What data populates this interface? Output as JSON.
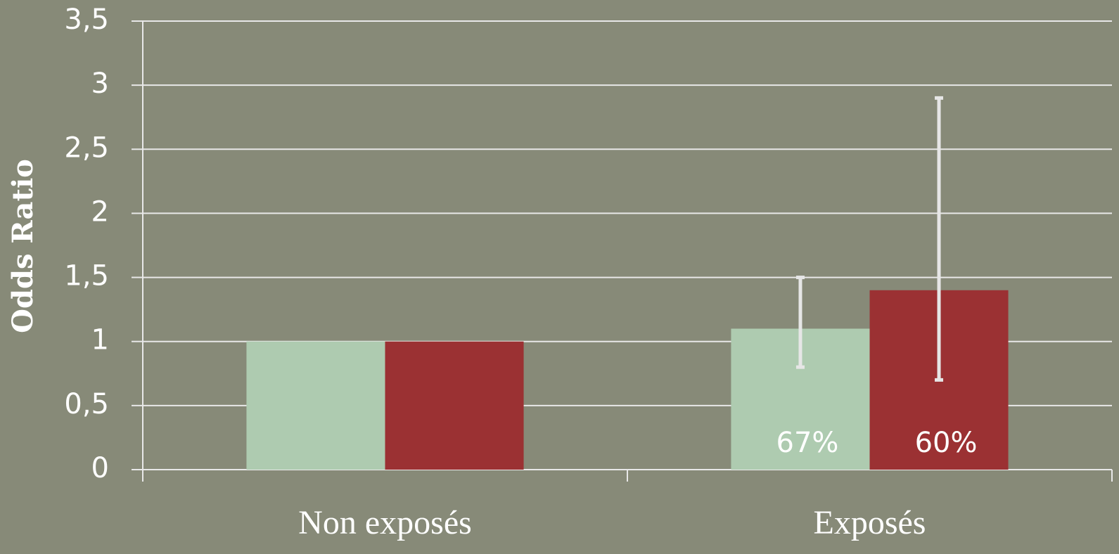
{
  "chart_data": {
    "type": "bar",
    "y_label": "Odds Ratio",
    "categories": [
      "Non exposés",
      "Exposés"
    ],
    "series": [
      {
        "color": "#aecbb0",
        "values": [
          1,
          1.1
        ],
        "lower": [
          null,
          0.8
        ],
        "upper": [
          null,
          1.5
        ],
        "value_labels": [
          null,
          "67%"
        ]
      },
      {
        "color": "#9b3133",
        "values": [
          1,
          1.4
        ],
        "lower": [
          null,
          0.7
        ],
        "upper": [
          null,
          2.9
        ],
        "value_labels": [
          null,
          "60%"
        ]
      }
    ],
    "ylim": [
      0,
      3.5
    ],
    "yticks": [
      0,
      {
        "value": 0.5,
        "label": "0,5"
      },
      1,
      {
        "value": 1.5,
        "label": "1,5"
      },
      2,
      {
        "value": 2.5,
        "label": "2,5"
      },
      3,
      {
        "value": 3.5,
        "label": "3,5"
      }
    ],
    "grid": true,
    "error_color": "#e6e6e6"
  }
}
